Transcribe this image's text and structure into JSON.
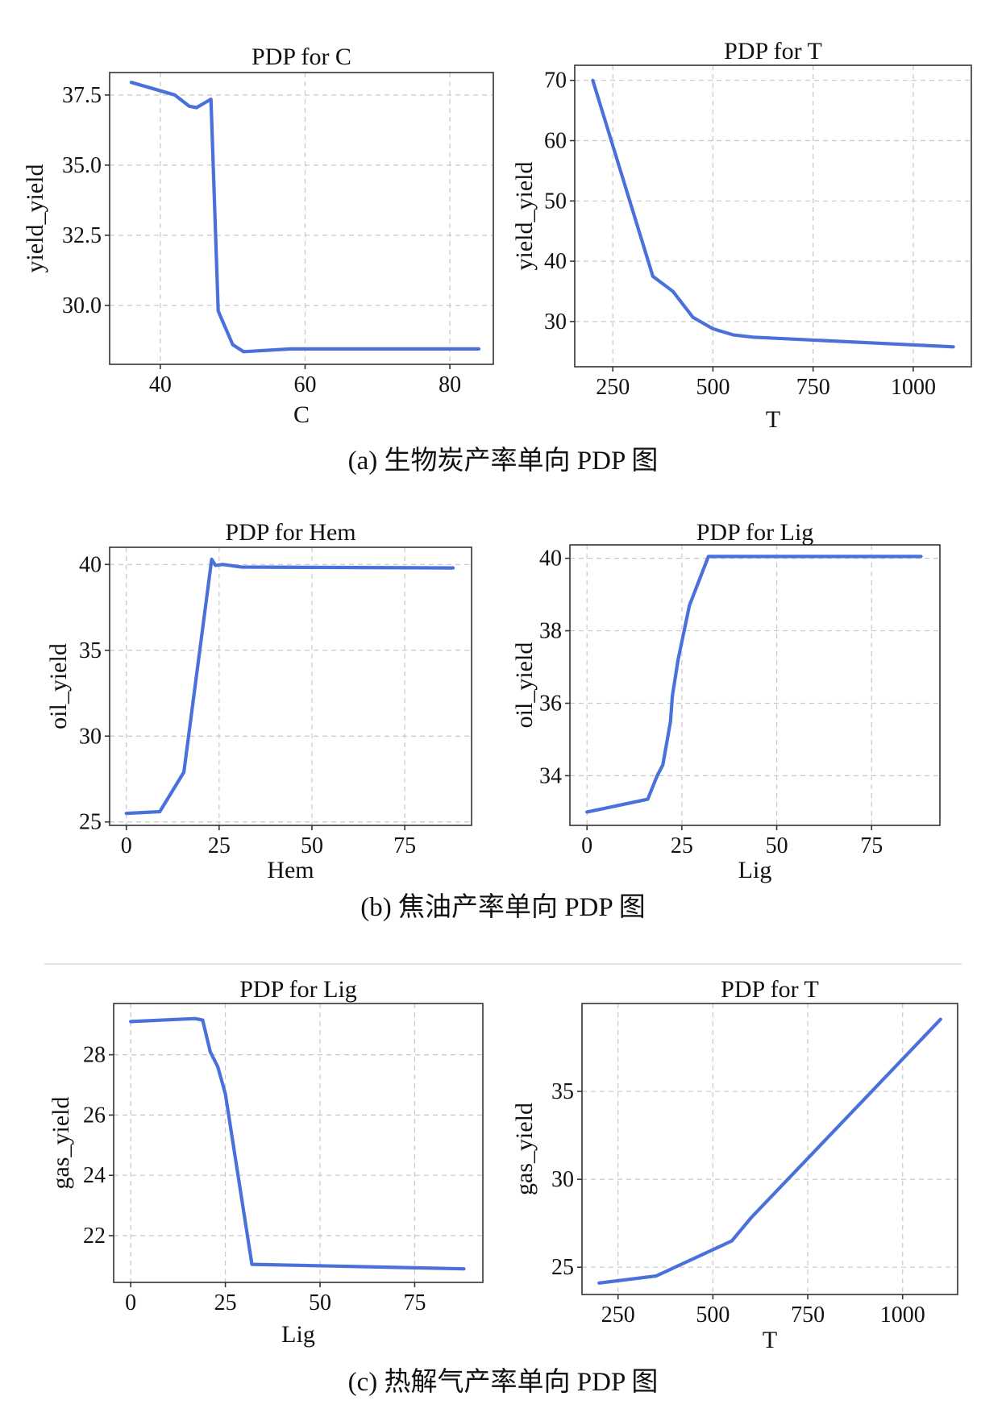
{
  "colors": {
    "series": "#4a70dc",
    "grid": "#c8c8c8",
    "frame": "#333333"
  },
  "captions": [
    "(a) 生物炭产率单向 PDP 图",
    "(b) 焦油产率单向 PDP 图",
    "(c) 热解气产率单向 PDP 图"
  ],
  "chart_data": [
    {
      "type": "line",
      "title": "PDP for C",
      "xlabel": "C",
      "ylabel": "yield_yield",
      "xlim": [
        33,
        86
      ],
      "ylim": [
        27.9,
        38.3
      ],
      "xticks": [
        40,
        60,
        80
      ],
      "xtick_labels": [
        "40",
        "60",
        "80"
      ],
      "yticks": [
        30.0,
        32.5,
        35.0,
        37.5
      ],
      "ytick_labels": [
        "30.0",
        "32.5",
        "35.0",
        "37.5"
      ],
      "grid": true,
      "x": [
        36,
        42,
        44,
        45,
        47,
        48,
        50,
        51.5,
        58,
        84
      ],
      "y": [
        37.95,
        37.5,
        37.1,
        37.05,
        37.35,
        29.8,
        28.6,
        28.35,
        28.45,
        28.45
      ]
    },
    {
      "type": "line",
      "title": "PDP for T",
      "xlabel": "T",
      "ylabel": "yield_yield",
      "xlim": [
        155,
        1145
      ],
      "ylim": [
        22.5,
        72.5
      ],
      "xticks": [
        250,
        500,
        750,
        1000
      ],
      "xtick_labels": [
        "250",
        "500",
        "750",
        "1000"
      ],
      "yticks": [
        30,
        40,
        50,
        60,
        70
      ],
      "ytick_labels": [
        "30",
        "40",
        "50",
        "60",
        "70"
      ],
      "grid": true,
      "x": [
        200,
        350,
        400,
        450,
        500,
        550,
        600,
        1100
      ],
      "y": [
        70,
        37.5,
        35,
        30.7,
        28.8,
        27.8,
        27.4,
        25.8
      ]
    },
    {
      "type": "line",
      "title": "PDP for Hem",
      "xlabel": "Hem",
      "ylabel": "oil_yield",
      "xlim": [
        -4.5,
        93
      ],
      "ylim": [
        24.8,
        41.0
      ],
      "xticks": [
        0,
        25,
        50,
        75
      ],
      "xtick_labels": [
        "0",
        "25",
        "50",
        "75"
      ],
      "yticks": [
        25,
        30,
        35,
        40
      ],
      "ytick_labels": [
        "25",
        "30",
        "35",
        "40"
      ],
      "grid": true,
      "x": [
        0,
        9,
        15.5,
        23,
        24,
        26,
        31,
        88
      ],
      "y": [
        25.5,
        25.6,
        27.9,
        40.3,
        39.95,
        40,
        39.85,
        39.8
      ]
    },
    {
      "type": "line",
      "title": "PDP for Lig",
      "xlabel": "Lig",
      "ylabel": "oil_yield",
      "xlim": [
        -4.5,
        93
      ],
      "ylim": [
        32.63,
        40.37
      ],
      "xticks": [
        0,
        25,
        50,
        75
      ],
      "xtick_labels": [
        "0",
        "25",
        "50",
        "75"
      ],
      "yticks": [
        34,
        36,
        38,
        40
      ],
      "ytick_labels": [
        "34",
        "36",
        "38",
        "40"
      ],
      "grid": true,
      "x": [
        0,
        16,
        18.5,
        20,
        22,
        22.5,
        24,
        27,
        32,
        88
      ],
      "y": [
        33,
        33.35,
        34,
        34.3,
        35.5,
        36.2,
        37.2,
        38.7,
        40.05,
        40.05
      ]
    },
    {
      "type": "line",
      "title": "PDP for Lig",
      "xlabel": "Lig",
      "ylabel": "gas_yield",
      "xlim": [
        -4.5,
        93
      ],
      "ylim": [
        20.45,
        29.7
      ],
      "xticks": [
        0,
        25,
        50,
        75
      ],
      "xtick_labels": [
        "0",
        "25",
        "50",
        "75"
      ],
      "yticks": [
        22,
        24,
        26,
        28
      ],
      "ytick_labels": [
        "22",
        "24",
        "26",
        "28"
      ],
      "grid": true,
      "x": [
        0,
        17,
        19,
        21,
        23,
        25,
        32,
        88
      ],
      "y": [
        29.1,
        29.2,
        29.15,
        28.1,
        27.6,
        26.7,
        21.05,
        20.9
      ]
    },
    {
      "type": "line",
      "title": "PDP for T",
      "xlabel": "T",
      "ylabel": "gas_yield",
      "xlim": [
        155,
        1145
      ],
      "ylim": [
        23.45,
        40.0
      ],
      "xticks": [
        250,
        500,
        750,
        1000
      ],
      "xtick_labels": [
        "250",
        "500",
        "750",
        "1000"
      ],
      "yticks": [
        25,
        30,
        35
      ],
      "ytick_labels": [
        "25",
        "30",
        "35"
      ],
      "grid": true,
      "x": [
        200,
        350,
        550,
        600,
        1100
      ],
      "y": [
        24.1,
        24.5,
        26.5,
        27.8,
        39.1
      ]
    }
  ]
}
